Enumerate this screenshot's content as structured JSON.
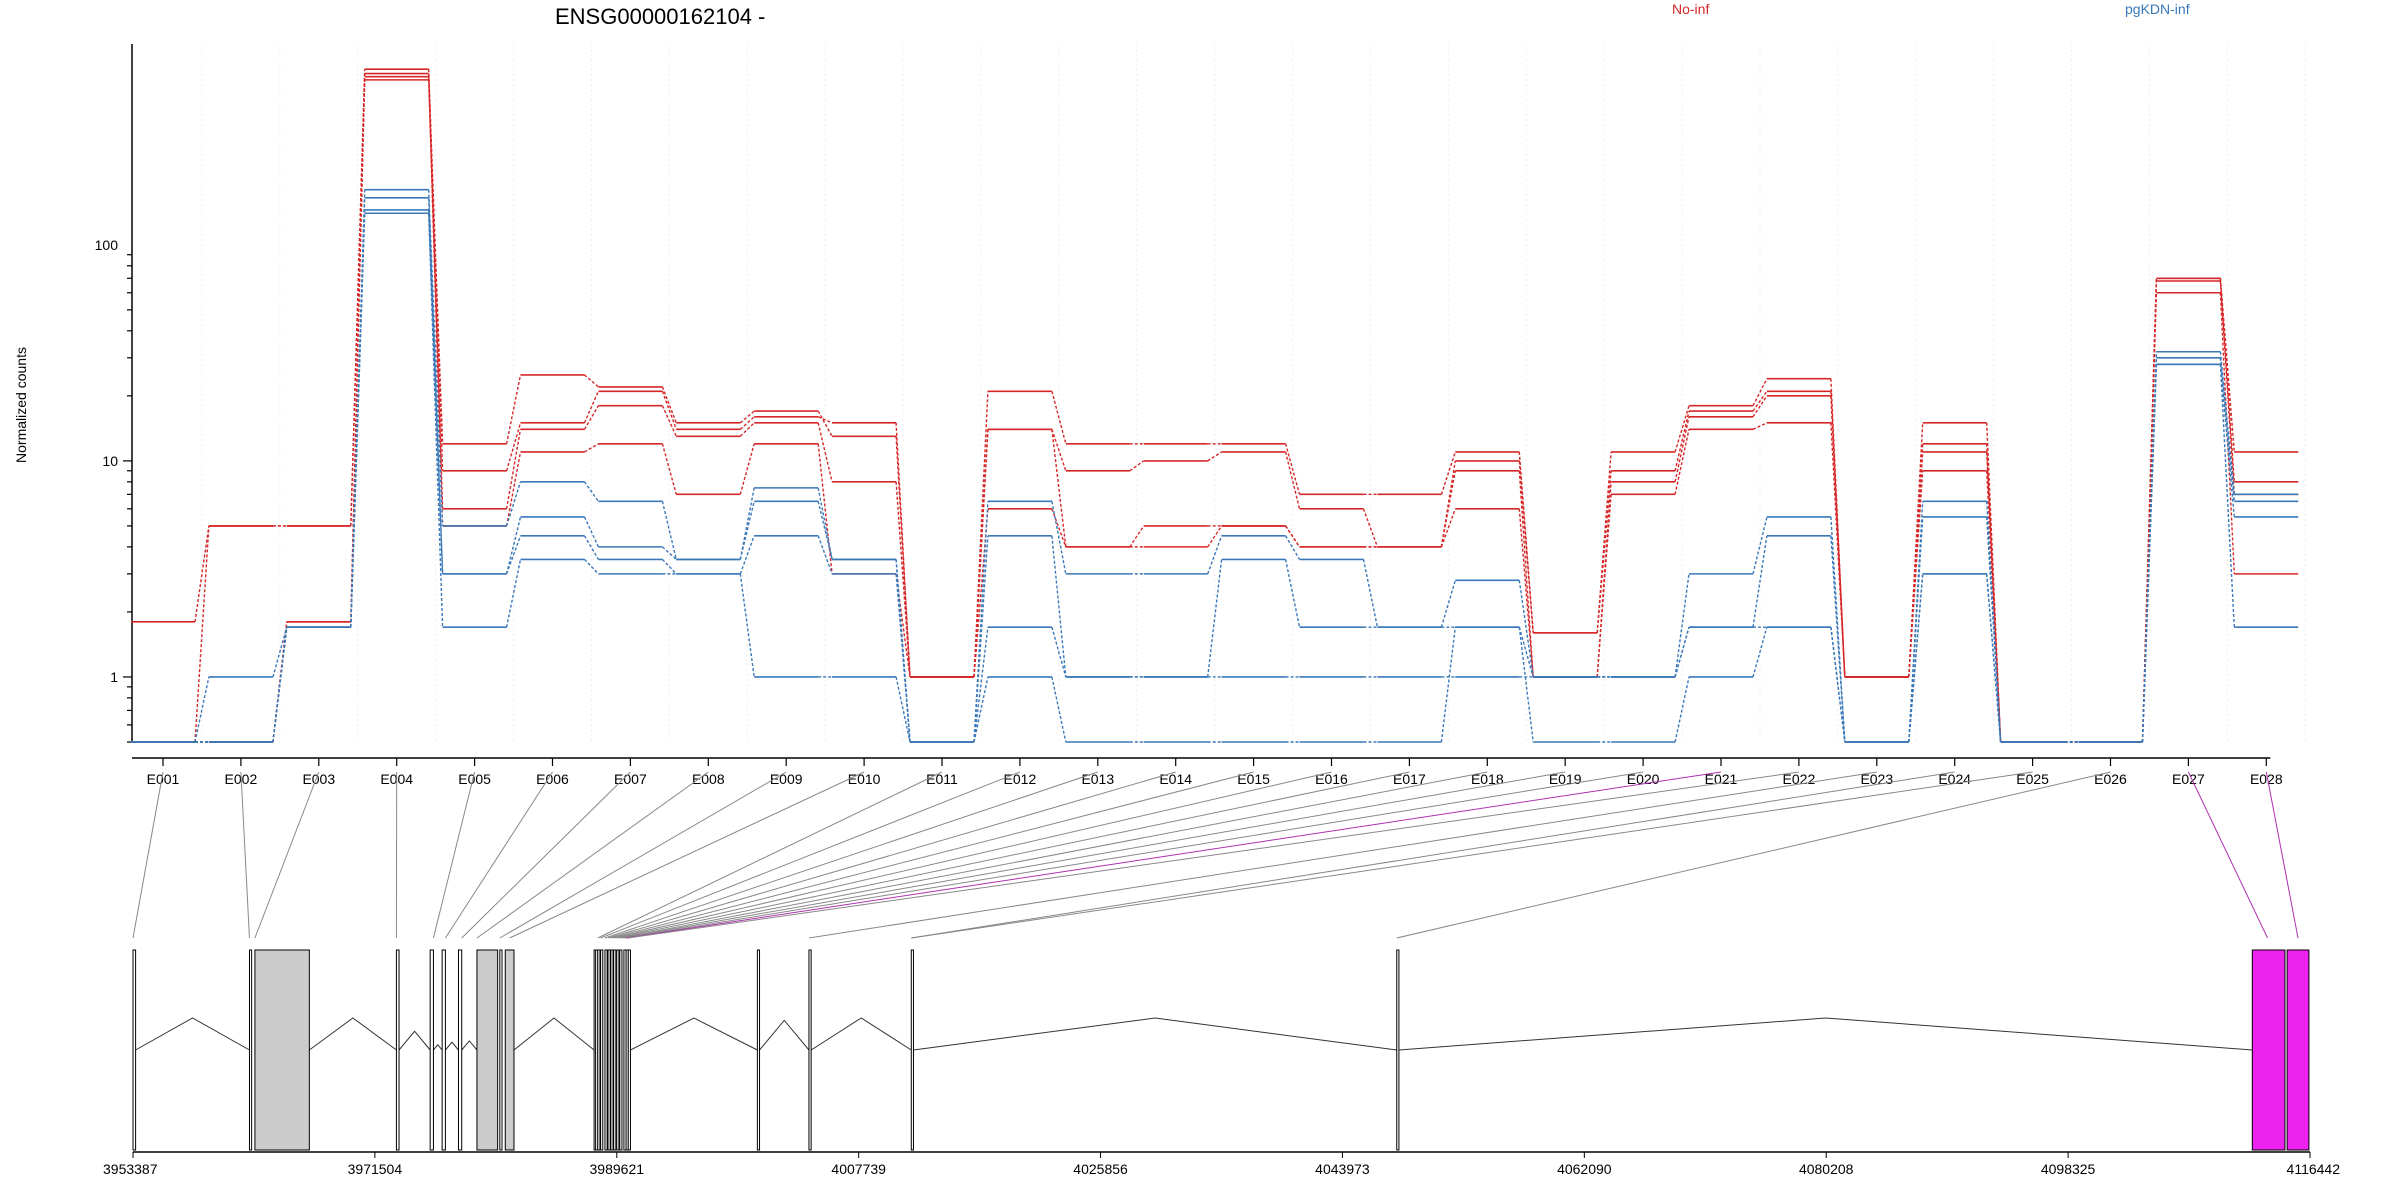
{
  "title": "ENSG00000162104 -",
  "legend": [
    {
      "label": "No-inf",
      "color": "#d62728"
    },
    {
      "label": "pgKDN-inf",
      "color": "#3a78b8"
    }
  ],
  "chart_data": {
    "type": "line",
    "title": "ENSG00000162104 -",
    "ylabel": "Normalized counts",
    "yscale": "log",
    "ylim": [
      0.5,
      850
    ],
    "yticks": [
      {
        "value": 1,
        "label": "1"
      },
      {
        "value": 10,
        "label": "10"
      },
      {
        "value": 100,
        "label": "100"
      }
    ],
    "categories": [
      "E001",
      "E002",
      "E003",
      "E004",
      "E005",
      "E006",
      "E007",
      "E008",
      "E009",
      "E010",
      "E011",
      "E012",
      "E013",
      "E014",
      "E015",
      "E016",
      "E017",
      "E018",
      "E019",
      "E020",
      "E021",
      "E022",
      "E023",
      "E024",
      "E025",
      "E026",
      "E027",
      "E028"
    ],
    "series": [
      {
        "group": "No-inf",
        "color": "#d62728",
        "values": [
          1.8,
          5,
          5,
          650,
          9,
          15,
          21,
          14,
          16,
          15,
          1,
          21,
          12,
          12,
          12,
          7,
          7,
          11,
          1.6,
          11,
          18,
          24,
          1,
          15,
          0.5,
          0.5,
          70,
          11
        ]
      },
      {
        "group": "No-inf",
        "color": "#d62728",
        "values": [
          0.5,
          5,
          5,
          620,
          12,
          25,
          22,
          15,
          17,
          13,
          1,
          14,
          9,
          10,
          11,
          6,
          4,
          10,
          1.6,
          9,
          17,
          21,
          1,
          12,
          0.5,
          0.5,
          70,
          8
        ]
      },
      {
        "group": "No-inf",
        "color": "#d62728",
        "values": [
          0.5,
          0.5,
          1.8,
          600,
          6,
          14,
          18,
          13,
          15,
          8,
          1,
          14,
          4,
          5,
          5,
          4,
          4,
          9,
          1,
          8,
          16,
          20,
          1,
          11,
          0.5,
          0.5,
          68,
          7
        ]
      },
      {
        "group": "No-inf",
        "color": "#d62728",
        "values": [
          0.5,
          0.5,
          1.8,
          580,
          5,
          11,
          12,
          7,
          12,
          3,
          1,
          6,
          4,
          4,
          5,
          4,
          4,
          6,
          1,
          7,
          14,
          15,
          1,
          9,
          0.5,
          0.5,
          60,
          3
        ]
      },
      {
        "group": "pgKDN-inf",
        "color": "#3a78b8",
        "values": [
          0.5,
          1,
          1.7,
          180,
          5,
          8,
          6.5,
          3.5,
          7.5,
          3.5,
          0.5,
          6.5,
          3,
          3,
          4.5,
          3.5,
          1.7,
          2.8,
          1,
          1,
          3,
          5.5,
          0.5,
          6.5,
          0.5,
          0.5,
          32,
          7
        ]
      },
      {
        "group": "pgKDN-inf",
        "color": "#3a78b8",
        "values": [
          0.5,
          0.5,
          1.7,
          165,
          3,
          5.5,
          4,
          3.5,
          6.5,
          3.5,
          0.5,
          4.5,
          1,
          1,
          3.5,
          1.7,
          1.7,
          1.7,
          1,
          1,
          1.7,
          4.5,
          0.5,
          5.5,
          0.5,
          0.5,
          30,
          6.5
        ]
      },
      {
        "group": "pgKDN-inf",
        "color": "#3a78b8",
        "values": [
          0.5,
          0.5,
          1.7,
          145,
          3,
          4.5,
          3.5,
          3,
          4.5,
          3,
          0.5,
          1.7,
          1,
          1,
          1,
          1,
          1,
          1,
          1,
          1,
          1.7,
          1.7,
          0.5,
          3,
          0.5,
          0.5,
          28,
          5.5
        ]
      },
      {
        "group": "pgKDN-inf",
        "color": "#3a78b8",
        "values": [
          0.5,
          0.5,
          1.7,
          140,
          1.7,
          3.5,
          3,
          3,
          1,
          1,
          0.5,
          1,
          0.5,
          0.5,
          0.5,
          0.5,
          0.5,
          1.7,
          0.5,
          0.5,
          1,
          1.7,
          0.5,
          3,
          0.5,
          0.5,
          28,
          1.7
        ]
      }
    ]
  },
  "gene_model": {
    "coordinate_ticks": [
      "3953387",
      "3971504",
      "3989621",
      "4007739",
      "4025856",
      "4043973",
      "4062090",
      "4080208",
      "4098325",
      "4116442"
    ],
    "highlight_color": "#ee22ee",
    "highlighted_exons": [
      "E021",
      "E027",
      "E028"
    ]
  }
}
